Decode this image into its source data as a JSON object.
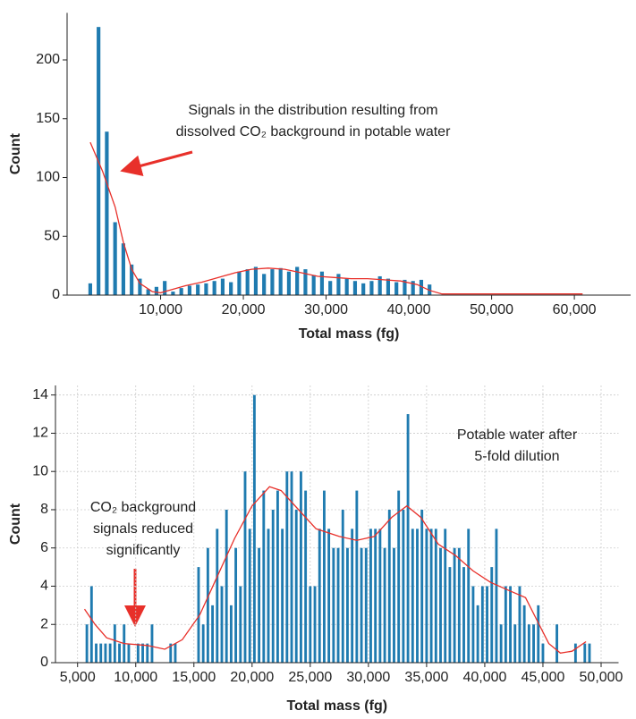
{
  "chart_data": [
    {
      "type": "histogram",
      "x_label": "Total mass (fg)",
      "y_label": "Count",
      "color": "#1f7bb0",
      "bins": [
        1000,
        2000,
        3000,
        4000,
        5000,
        6000,
        7000,
        8000,
        9000,
        10000,
        11000,
        12000,
        13000,
        14000,
        15000,
        16000,
        17000,
        18000,
        19000,
        20000,
        21000,
        22000,
        23000,
        24000,
        25000,
        26000,
        27000,
        28000,
        29000,
        30000,
        31000,
        32000,
        33000,
        34000,
        35000,
        36000,
        37000,
        38000,
        39000,
        40000,
        41000,
        42000,
        43000
      ],
      "counts": [
        10,
        228,
        139,
        62,
        44,
        26,
        14,
        5,
        7,
        12,
        3,
        6,
        8,
        9,
        10,
        12,
        14,
        11,
        20,
        22,
        24,
        18,
        22,
        23,
        20,
        24,
        22,
        17,
        20,
        12,
        18,
        14,
        12,
        10,
        12,
        16,
        14,
        11,
        13,
        12,
        13,
        9
      ],
      "curve": {
        "color": "#e8302a",
        "x": [
          1500,
          3000,
          4500,
          5500,
          6500,
          7500,
          9000,
          10000,
          11000,
          13000,
          15000,
          17000,
          19000,
          21000,
          23000,
          25000,
          27000,
          29000,
          31000,
          33000,
          35000,
          37000,
          39000,
          41000,
          42500,
          44000,
          50000,
          61000
        ],
        "y": [
          130,
          105,
          75,
          45,
          22,
          10,
          3,
          2,
          4,
          8,
          11,
          15,
          19,
          22,
          23,
          22,
          19,
          16,
          15,
          14,
          14,
          13,
          12,
          9,
          4,
          1,
          1,
          1
        ]
      },
      "xlim": [
        -1300,
        66800
      ],
      "ylim": [
        0,
        240
      ],
      "xticks": [
        {
          "value": 10000,
          "label": "10,000"
        },
        {
          "value": 20000,
          "label": "20,000"
        },
        {
          "value": 30000,
          "label": "30,000"
        },
        {
          "value": 40000,
          "label": "40,000"
        },
        {
          "value": 50000,
          "label": "50,000"
        },
        {
          "value": 60000,
          "label": "60,000"
        }
      ],
      "yticks": [
        0,
        50,
        100,
        150,
        200
      ],
      "grid": false,
      "annotations": [
        {
          "lines": [
            "Signals in the distribution resulting from",
            "dissolved CO₂ background in potable water"
          ]
        }
      ]
    },
    {
      "type": "histogram",
      "x_label": "Total mass (fg)",
      "y_label": "Count",
      "color": "#1f7bb0",
      "bins": [
        5600,
        6000,
        6400,
        6800,
        7200,
        7600,
        8000,
        8400,
        8800,
        9200,
        9600,
        10000,
        10400,
        10800,
        11200,
        11600,
        12000,
        12400,
        12800,
        13200,
        13600,
        14000,
        14400,
        14800,
        15200,
        15600,
        16000,
        16400,
        16800,
        17200,
        17600,
        18000,
        18400,
        18800,
        19200,
        19600,
        20000,
        20400,
        20800,
        21200,
        21600,
        22000,
        22400,
        22800,
        23200,
        23600,
        24000,
        24400,
        24800,
        25200,
        25600,
        26000,
        26400,
        26800,
        27200,
        27600,
        28000,
        28400,
        28800,
        29200,
        29600,
        30000,
        30400,
        30800,
        31200,
        31600,
        32000,
        32400,
        32800,
        33200,
        33600,
        34000,
        34400,
        34800,
        35200,
        35600,
        36000,
        36400,
        36800,
        37200,
        37600,
        38000,
        38400,
        38800,
        39200,
        39600,
        40000,
        40400,
        40800,
        41200,
        41600,
        42000,
        42400,
        42800,
        43200,
        43600,
        44000,
        44400,
        44800,
        45200,
        45600,
        46000,
        46400,
        46800,
        47200,
        47600,
        48000,
        48400,
        48800,
        49200
      ],
      "counts": [
        2,
        4,
        1,
        1,
        1,
        1,
        2,
        1,
        2,
        1,
        0,
        1,
        1,
        1,
        2,
        0,
        0,
        0,
        1,
        1,
        0,
        0,
        0,
        0,
        5,
        2,
        6,
        3,
        7,
        4,
        8,
        3,
        6,
        4,
        10,
        7,
        14,
        6,
        9,
        7,
        8,
        9,
        7,
        10,
        10,
        8,
        10,
        9,
        4,
        4,
        7,
        9,
        7,
        6,
        6,
        8,
        6,
        7,
        9,
        6,
        6,
        7,
        7,
        7,
        6,
        8,
        6,
        9,
        8,
        13,
        7,
        7,
        8,
        7,
        7,
        7,
        6,
        7,
        5,
        6,
        6,
        5,
        7,
        4,
        3,
        4,
        4,
        5,
        7,
        2,
        4,
        4,
        2,
        4,
        3,
        2,
        2,
        3,
        1,
        0,
        0,
        2,
        0,
        0,
        0,
        1,
        0,
        1,
        1
      ],
      "curve": {
        "color": "#e8302a",
        "x": [
          5600,
          6500,
          7500,
          9000,
          11000,
          12500,
          14000,
          15500,
          17000,
          18500,
          20000,
          21500,
          22500,
          24000,
          25500,
          27500,
          29000,
          30500,
          32000,
          33300,
          34500,
          36000,
          37500,
          39000,
          40500,
          42000,
          43500,
          44500,
          45500,
          46500,
          47500,
          48700
        ],
        "y": [
          2.8,
          2,
          1.3,
          1,
          0.9,
          0.7,
          1.2,
          2.5,
          4.5,
          6.5,
          8.2,
          9.2,
          9,
          8,
          7,
          6.6,
          6.4,
          6.6,
          7.6,
          8.2,
          7.6,
          6.2,
          5.6,
          4.8,
          4.2,
          3.8,
          3.4,
          2.2,
          1,
          0.5,
          0.6,
          1.1
        ]
      },
      "xlim": [
        3100,
        51500
      ],
      "ylim": [
        0,
        14.5
      ],
      "xticks": [
        {
          "value": 5000,
          "label": "5,000"
        },
        {
          "value": 10000,
          "label": "10,000"
        },
        {
          "value": 15000,
          "label": "15,000"
        },
        {
          "value": 20000,
          "label": "20,000"
        },
        {
          "value": 25000,
          "label": "25,000"
        },
        {
          "value": 30000,
          "label": "30,000"
        },
        {
          "value": 35000,
          "label": "35,000"
        },
        {
          "value": 40000,
          "label": "40,000"
        },
        {
          "value": 45000,
          "label": "45,000"
        },
        {
          "value": 50000,
          "label": "50,000"
        }
      ],
      "yticks": [
        0,
        2,
        4,
        6,
        8,
        10,
        12,
        14
      ],
      "grid": true,
      "annotations": [
        {
          "lines": [
            "Potable water after",
            "5-fold dilution"
          ]
        },
        {
          "lines": [
            "CO₂ background",
            "signals reduced",
            "significantly"
          ]
        }
      ]
    }
  ]
}
